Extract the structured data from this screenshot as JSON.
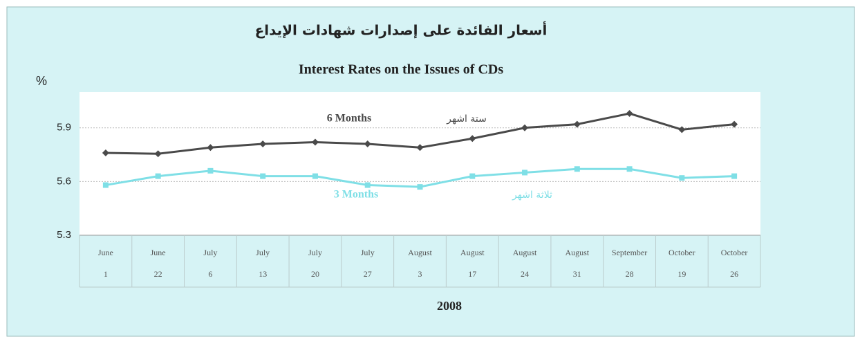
{
  "chart_data": {
    "type": "line",
    "title": "أسعار الفائدة على إصدارات شهادات الإيداع",
    "subtitle": "Interest Rates on the Issues of CDs",
    "y_label": "%",
    "x_label": "2008",
    "categories": [
      [
        "June",
        "1"
      ],
      [
        "June",
        "22"
      ],
      [
        "July",
        "6"
      ],
      [
        "July",
        "13"
      ],
      [
        "July",
        "20"
      ],
      [
        "July",
        "27"
      ],
      [
        "August",
        "3"
      ],
      [
        "August",
        "17"
      ],
      [
        "August",
        "24"
      ],
      [
        "August",
        "31"
      ],
      [
        "September",
        "28"
      ],
      [
        "October",
        "19"
      ],
      [
        "October",
        "26"
      ]
    ],
    "series": [
      {
        "name": "6 Months",
        "name_ar": "ستة اشهر",
        "color": "#4a4a4a",
        "marker": "diamond",
        "values": [
          5.76,
          5.755,
          5.79,
          5.81,
          5.82,
          5.81,
          5.79,
          5.84,
          5.9,
          5.92,
          5.98,
          5.89,
          5.92
        ]
      },
      {
        "name": "3 Months",
        "name_ar": "ثلاثة اشهر",
        "color": "#7fdfe6",
        "marker": "square",
        "values": [
          5.58,
          5.63,
          5.66,
          5.63,
          5.63,
          5.58,
          5.57,
          5.63,
          5.65,
          5.67,
          5.67,
          5.62,
          5.63
        ]
      }
    ],
    "ylim": [
      5.3,
      6.1
    ],
    "yticks": [
      5.3,
      5.6,
      5.9
    ],
    "grid": true
  }
}
